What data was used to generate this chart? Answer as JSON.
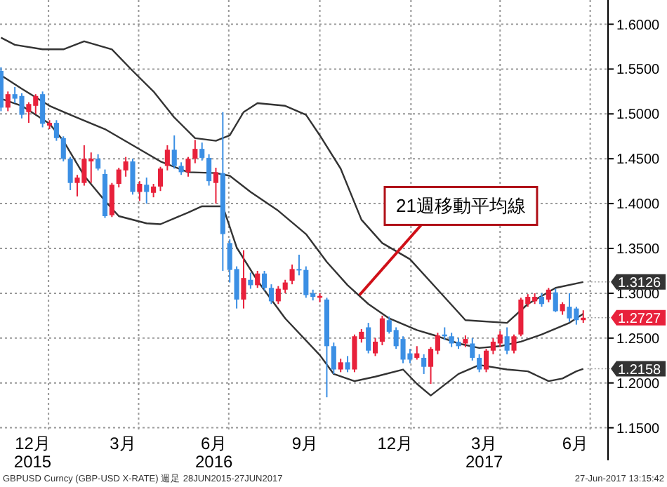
{
  "chart_data": {
    "type": "candlestick",
    "x": [
      "2015-11-13",
      "2015-11-20",
      "2015-11-27",
      "2015-12-04",
      "2015-12-11",
      "2015-12-18",
      "2015-12-25",
      "2016-01-01",
      "2016-01-08",
      "2016-01-15",
      "2016-01-22",
      "2016-01-29",
      "2016-02-05",
      "2016-02-12",
      "2016-02-19",
      "2016-02-26",
      "2016-03-04",
      "2016-03-11",
      "2016-03-18",
      "2016-03-25",
      "2016-04-01",
      "2016-04-08",
      "2016-04-15",
      "2016-04-22",
      "2016-04-29",
      "2016-05-06",
      "2016-05-13",
      "2016-05-20",
      "2016-05-27",
      "2016-06-03",
      "2016-06-10",
      "2016-06-17",
      "2016-06-24",
      "2016-07-01",
      "2016-07-08",
      "2016-07-15",
      "2016-07-22",
      "2016-07-29",
      "2016-08-05",
      "2016-08-12",
      "2016-08-19",
      "2016-08-26",
      "2016-09-02",
      "2016-09-09",
      "2016-09-16",
      "2016-09-23",
      "2016-09-30",
      "2016-10-07",
      "2016-10-14",
      "2016-10-21",
      "2016-10-28",
      "2016-11-04",
      "2016-11-11",
      "2016-11-18",
      "2016-11-25",
      "2016-12-02",
      "2016-12-09",
      "2016-12-16",
      "2016-12-23",
      "2016-12-30",
      "2017-01-06",
      "2017-01-13",
      "2017-01-20",
      "2017-01-27",
      "2017-02-03",
      "2017-02-10",
      "2017-02-17",
      "2017-02-24",
      "2017-03-03",
      "2017-03-10",
      "2017-03-17",
      "2017-03-24",
      "2017-03-31",
      "2017-04-07",
      "2017-04-14",
      "2017-04-21",
      "2017-04-28",
      "2017-05-05",
      "2017-05-12",
      "2017-05-19",
      "2017-05-26",
      "2017-06-02",
      "2017-06-09",
      "2017-06-16",
      "2017-06-23"
    ],
    "ohlc": [
      [
        1.548,
        1.552,
        1.503,
        1.507
      ],
      [
        1.507,
        1.525,
        1.503,
        1.522
      ],
      [
        1.522,
        1.53,
        1.512,
        1.517
      ],
      [
        1.52,
        1.523,
        1.495,
        1.499
      ],
      [
        1.502,
        1.513,
        1.49,
        1.511
      ],
      [
        1.509,
        1.522,
        1.5,
        1.52
      ],
      [
        1.522,
        1.525,
        1.485,
        1.489
      ],
      [
        1.487,
        1.493,
        1.483,
        1.49
      ],
      [
        1.49,
        1.493,
        1.47,
        1.473
      ],
      [
        1.473,
        1.475,
        1.447,
        1.45
      ],
      [
        1.45,
        1.452,
        1.415,
        1.423
      ],
      [
        1.423,
        1.432,
        1.408,
        1.429
      ],
      [
        1.423,
        1.465,
        1.42,
        1.45
      ],
      [
        1.447,
        1.457,
        1.423,
        1.45
      ],
      [
        1.45,
        1.455,
        1.437,
        1.439
      ],
      [
        1.433,
        1.438,
        1.384,
        1.386
      ],
      [
        1.387,
        1.423,
        1.385,
        1.421
      ],
      [
        1.422,
        1.44,
        1.418,
        1.438
      ],
      [
        1.437,
        1.452,
        1.43,
        1.447
      ],
      [
        1.447,
        1.45,
        1.41,
        1.413
      ],
      [
        1.413,
        1.425,
        1.403,
        1.422
      ],
      [
        1.421,
        1.429,
        1.4,
        1.413
      ],
      [
        1.412,
        1.422,
        1.407,
        1.419
      ],
      [
        1.419,
        1.441,
        1.414,
        1.439
      ],
      [
        1.442,
        1.465,
        1.437,
        1.46
      ],
      [
        1.46,
        1.476,
        1.439,
        1.442
      ],
      [
        1.442,
        1.446,
        1.432,
        1.435
      ],
      [
        1.435,
        1.452,
        1.43,
        1.45
      ],
      [
        1.45,
        1.471,
        1.445,
        1.461
      ],
      [
        1.461,
        1.468,
        1.448,
        1.451
      ],
      [
        1.451,
        1.455,
        1.42,
        1.425
      ],
      [
        1.423,
        1.44,
        1.4,
        1.435
      ],
      [
        1.434,
        1.502,
        1.325,
        1.366
      ],
      [
        1.356,
        1.36,
        1.312,
        1.326
      ],
      [
        1.327,
        1.33,
        1.283,
        1.293
      ],
      [
        1.293,
        1.348,
        1.283,
        1.317
      ],
      [
        1.315,
        1.323,
        1.305,
        1.309
      ],
      [
        1.309,
        1.325,
        1.306,
        1.322
      ],
      [
        1.322,
        1.325,
        1.303,
        1.306
      ],
      [
        1.306,
        1.31,
        1.288,
        1.291
      ],
      [
        1.291,
        1.308,
        1.288,
        1.305
      ],
      [
        1.304,
        1.315,
        1.3,
        1.312
      ],
      [
        1.314,
        1.332,
        1.31,
        1.327
      ],
      [
        1.327,
        1.343,
        1.32,
        1.326
      ],
      [
        1.326,
        1.33,
        1.295,
        1.298
      ],
      [
        1.3,
        1.304,
        1.292,
        1.296
      ],
      [
        1.295,
        1.3,
        1.29,
        1.297
      ],
      [
        1.293,
        1.295,
        1.184,
        1.241
      ],
      [
        1.241,
        1.245,
        1.21,
        1.215
      ],
      [
        1.215,
        1.227,
        1.212,
        1.223
      ],
      [
        1.223,
        1.23,
        1.212,
        1.215
      ],
      [
        1.215,
        1.254,
        1.212,
        1.252
      ],
      [
        1.249,
        1.26,
        1.245,
        1.257
      ],
      [
        1.262,
        1.267,
        1.233,
        1.236
      ],
      [
        1.233,
        1.25,
        1.23,
        1.246
      ],
      [
        1.246,
        1.275,
        1.242,
        1.272
      ],
      [
        1.27,
        1.274,
        1.255,
        1.257
      ],
      [
        1.259,
        1.262,
        1.238,
        1.241
      ],
      [
        1.249,
        1.252,
        1.222,
        1.226
      ],
      [
        1.233,
        1.238,
        1.222,
        1.226
      ],
      [
        1.228,
        1.241,
        1.226,
        1.233
      ],
      [
        1.228,
        1.232,
        1.21,
        1.218
      ],
      [
        1.218,
        1.24,
        1.199,
        1.238
      ],
      [
        1.236,
        1.256,
        1.232,
        1.253
      ],
      [
        1.254,
        1.262,
        1.248,
        1.252
      ],
      [
        1.252,
        1.256,
        1.24,
        1.244
      ],
      [
        1.246,
        1.25,
        1.238,
        1.241
      ],
      [
        1.244,
        1.253,
        1.24,
        1.249
      ],
      [
        1.244,
        1.25,
        1.225,
        1.228
      ],
      [
        1.228,
        1.232,
        1.212,
        1.215
      ],
      [
        1.215,
        1.238,
        1.212,
        1.236
      ],
      [
        1.236,
        1.25,
        1.232,
        1.246
      ],
      [
        1.244,
        1.258,
        1.24,
        1.254
      ],
      [
        1.252,
        1.262,
        1.232,
        1.236
      ],
      [
        1.236,
        1.254,
        1.233,
        1.252
      ],
      [
        1.254,
        1.295,
        1.252,
        1.293
      ],
      [
        1.288,
        1.299,
        1.285,
        1.296
      ],
      [
        1.291,
        1.3,
        1.288,
        1.296
      ],
      [
        1.296,
        1.3,
        1.285,
        1.288
      ],
      [
        1.293,
        1.306,
        1.29,
        1.304
      ],
      [
        1.301,
        1.305,
        1.279,
        1.28
      ],
      [
        1.28,
        1.29,
        1.276,
        1.288
      ],
      [
        1.285,
        1.3,
        1.268,
        1.272
      ],
      [
        1.283,
        1.285,
        1.265,
        1.27
      ],
      [
        1.27,
        1.281,
        1.267,
        1.2727
      ]
    ],
    "colors": [
      "#3b8fe4",
      "#e8213b",
      "#3b8fe4",
      "#3b8fe4",
      "#e8213b",
      "#e8213b",
      "#3b8fe4",
      "#e8213b",
      "#3b8fe4",
      "#3b8fe4",
      "#3b8fe4",
      "#e8213b",
      "#e8213b",
      "#e8213b",
      "#3b8fe4",
      "#3b8fe4",
      "#e8213b",
      "#e8213b",
      "#e8213b",
      "#3b8fe4",
      "#e8213b",
      "#3b8fe4",
      "#e8213b",
      "#e8213b",
      "#e8213b",
      "#3b8fe4",
      "#3b8fe4",
      "#e8213b",
      "#e8213b",
      "#3b8fe4",
      "#3b8fe4",
      "#e8213b",
      "#3b8fe4",
      "#3b8fe4",
      "#3b8fe4",
      "#e8213b",
      "#3b8fe4",
      "#e8213b",
      "#3b8fe4",
      "#3b8fe4",
      "#e8213b",
      "#e8213b",
      "#e8213b",
      "#3b8fe4",
      "#3b8fe4",
      "#3b8fe4",
      "#e8213b",
      "#3b8fe4",
      "#3b8fe4",
      "#e8213b",
      "#3b8fe4",
      "#e8213b",
      "#e8213b",
      "#3b8fe4",
      "#e8213b",
      "#e8213b",
      "#3b8fe4",
      "#3b8fe4",
      "#3b8fe4",
      "#3b8fe4",
      "#e8213b",
      "#3b8fe4",
      "#e8213b",
      "#e8213b",
      "#3b8fe4",
      "#3b8fe4",
      "#3b8fe4",
      "#e8213b",
      "#3b8fe4",
      "#3b8fe4",
      "#e8213b",
      "#e8213b",
      "#e8213b",
      "#3b8fe4",
      "#e8213b",
      "#e8213b",
      "#e8213b",
      "#e8213b",
      "#3b8fe4",
      "#e8213b",
      "#3b8fe4",
      "#e8213b",
      "#3b8fe4",
      "#3b8fe4",
      "#e8213b"
    ],
    "value_labels": [
      null,
      null,
      null,
      null,
      null,
      null,
      null,
      null,
      null,
      null,
      null,
      null,
      null,
      null,
      null,
      null,
      null,
      null,
      null,
      null,
      null,
      null,
      null,
      null,
      null,
      null,
      null,
      null,
      null,
      null,
      null,
      null,
      null,
      null,
      null,
      null,
      null,
      null,
      null,
      null,
      null,
      null,
      null,
      null,
      null,
      null,
      null,
      null,
      null,
      null,
      null,
      null,
      null,
      null,
      null,
      null,
      null,
      null,
      null,
      null,
      null,
      null,
      null,
      null,
      null,
      null,
      null,
      null,
      null,
      null,
      null,
      null,
      null,
      null,
      null,
      null,
      null,
      null,
      null,
      null,
      null,
      null,
      null,
      null,
      "1.2727"
    ],
    "series": [
      {
        "type": "line",
        "color": "#333333",
        "x": [
          "2015-11-13",
          "2015-11-27",
          "2015-12-25",
          "2016-01-15",
          "2016-02-05",
          "2016-03-04",
          "2016-03-25",
          "2016-04-15",
          "2016-05-06",
          "2016-05-27",
          "2016-06-17",
          "2016-07-01",
          "2016-07-15",
          "2016-07-29",
          "2016-08-26",
          "2016-09-16",
          "2016-09-30",
          "2016-10-21",
          "2016-11-11",
          "2016-12-02",
          "2016-12-30",
          "2017-01-27",
          "2017-02-24",
          "2017-04-07",
          "2017-04-28",
          "2017-05-26",
          "2017-06-23"
        ],
        "values": [
          1.585,
          1.577,
          1.572,
          1.572,
          1.581,
          1.572,
          1.548,
          1.525,
          1.496,
          1.473,
          1.47,
          1.476,
          1.502,
          1.512,
          1.509,
          1.499,
          1.476,
          1.439,
          1.382,
          1.356,
          1.338,
          1.304,
          1.27,
          1.267,
          1.288,
          1.306,
          1.3126
        ],
        "value_labels": [
          null,
          null,
          null,
          null,
          null,
          null,
          null,
          null,
          null,
          null,
          null,
          null,
          null,
          null,
          null,
          null,
          null,
          null,
          null,
          null,
          null,
          null,
          null,
          null,
          null,
          null,
          "1.3126"
        ]
      },
      {
        "type": "line",
        "color": "#333333",
        "x": [
          "2015-11-13",
          "2015-12-04",
          "2016-01-01",
          "2016-01-22",
          "2016-02-26",
          "2016-03-25",
          "2016-04-22",
          "2016-05-20",
          "2016-06-17",
          "2016-07-01",
          "2016-07-22",
          "2016-08-19",
          "2016-09-16",
          "2016-10-07",
          "2016-10-28",
          "2016-11-18",
          "2016-12-09",
          "2017-01-06",
          "2017-01-27",
          "2017-02-17",
          "2017-03-10",
          "2017-03-31",
          "2017-04-21",
          "2017-05-12",
          "2017-06-09",
          "2017-06-23"
        ],
        "values": [
          1.543,
          1.528,
          1.509,
          1.499,
          1.483,
          1.465,
          1.447,
          1.435,
          1.434,
          1.431,
          1.413,
          1.392,
          1.366,
          1.335,
          1.309,
          1.288,
          1.272,
          1.259,
          1.252,
          1.244,
          1.239,
          1.241,
          1.246,
          1.254,
          1.267,
          1.277
        ]
      },
      {
        "type": "line",
        "color": "#333333",
        "x": [
          "2015-11-13",
          "2015-12-04",
          "2016-01-01",
          "2016-01-15",
          "2016-02-05",
          "2016-02-26",
          "2016-03-11",
          "2016-04-08",
          "2016-04-22",
          "2016-05-20",
          "2016-06-03",
          "2016-06-24",
          "2016-07-08",
          "2016-07-29",
          "2016-08-26",
          "2016-09-30",
          "2016-10-14",
          "2016-11-04",
          "2016-11-25",
          "2016-12-23",
          "2017-01-06",
          "2017-01-20",
          "2017-02-17",
          "2017-03-10",
          "2017-04-07",
          "2017-04-28",
          "2017-05-19",
          "2017-06-02",
          "2017-06-16",
          "2017-06-23"
        ],
        "values": [
          1.517,
          1.509,
          1.489,
          1.47,
          1.431,
          1.403,
          1.386,
          1.378,
          1.377,
          1.39,
          1.397,
          1.397,
          1.351,
          1.314,
          1.272,
          1.231,
          1.21,
          1.202,
          1.207,
          1.215,
          1.199,
          1.186,
          1.21,
          1.22,
          1.215,
          1.213,
          1.202,
          1.205,
          1.213,
          1.2158
        ],
        "value_labels": [
          null,
          null,
          null,
          null,
          null,
          null,
          null,
          null,
          null,
          null,
          null,
          null,
          null,
          null,
          null,
          null,
          null,
          null,
          null,
          null,
          null,
          null,
          null,
          null,
          null,
          null,
          null,
          null,
          null,
          "1.2158"
        ]
      }
    ],
    "xlim": [
      "2015-11-12",
      "2017-07-18"
    ],
    "xticks": [
      {
        "value": "2015-12-15",
        "label": "12月\n2015"
      },
      {
        "value": "2015-12-31",
        "label": null
      },
      {
        "value": "2016-03-15",
        "label": "3月"
      },
      {
        "value": "2016-03-31",
        "label": null
      },
      {
        "value": "2016-06-15",
        "label": "6月\n2016"
      },
      {
        "value": "2016-06-30",
        "label": null
      },
      {
        "value": "2016-09-15",
        "label": "9月"
      },
      {
        "value": "2016-09-30",
        "label": null
      },
      {
        "value": "2016-12-15",
        "label": "12月"
      },
      {
        "value": "2016-12-31",
        "label": null
      },
      {
        "value": "2017-03-15",
        "label": "3月\n2017"
      },
      {
        "value": "2017-03-31",
        "label": null
      },
      {
        "value": "2017-06-15",
        "label": "6月"
      },
      {
        "value": "2017-06-30",
        "label": null
      }
    ],
    "ylim": [
      1.145,
      1.627
    ],
    "yticks": [
      {
        "value": 1.15,
        "label": "1.1500"
      },
      {
        "value": 1.2,
        "label": "1.2000"
      },
      {
        "value": 1.25,
        "label": "1.2500"
      },
      {
        "value": 1.3,
        "label": "1.3000"
      },
      {
        "value": 1.35,
        "label": "1.3500"
      },
      {
        "value": 1.4,
        "label": "1.4000"
      },
      {
        "value": 1.45,
        "label": "1.4500"
      },
      {
        "value": 1.5,
        "label": "1.5000"
      },
      {
        "value": 1.55,
        "label": "1.5500"
      },
      {
        "value": 1.6,
        "label": "1.6000"
      }
    ],
    "grid": true,
    "annotations": [
      {
        "text": "21週移動平均線",
        "x": "2016-11-09",
        "y": 1.298
      },
      "GBPUSD Curncy (GBP-USD X-RATE) 週足 28JUN2015-27JUN2017",
      "27-Jun-2017 13:15:42"
    ]
  }
}
